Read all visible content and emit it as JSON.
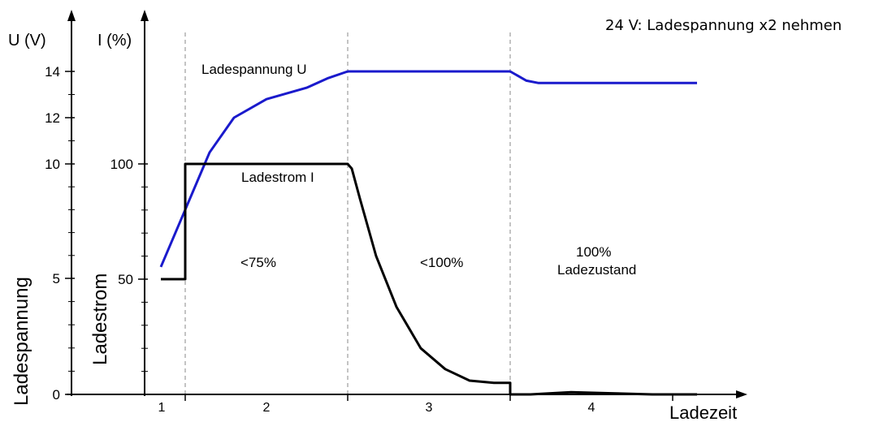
{
  "chart_data": {
    "type": "line",
    "note": "24 V: Ladespannung x2 nehmen",
    "y_left": {
      "unit_label": "U (V)",
      "title": "Ladespannung",
      "ticks": [
        {
          "value": 0,
          "label": "0"
        },
        {
          "value": 5,
          "label": "5"
        },
        {
          "value": 10,
          "label": "10"
        },
        {
          "value": 12,
          "label": "12"
        },
        {
          "value": 14,
          "label": "14"
        }
      ],
      "ylim": [
        0,
        14
      ]
    },
    "y_right": {
      "unit_label": "I (%)",
      "title": "Ladestrom",
      "ticks": [
        {
          "value": 50,
          "label": "50"
        },
        {
          "value": 100,
          "label": "100"
        }
      ],
      "ylim": [
        0,
        100
      ]
    },
    "x_axis": {
      "title": "Ladezeit",
      "phase_boundaries": [
        1,
        5,
        9,
        13
      ],
      "xlim": [
        0,
        14
      ],
      "phase_labels": [
        "1",
        "2",
        "3",
        "4"
      ]
    },
    "phase_annotations": [
      {
        "phase": 2,
        "text": "<75%"
      },
      {
        "phase": 3,
        "text": "<100%"
      },
      {
        "phase": 4,
        "lines": [
          "100%",
          "Ladezustand"
        ]
      }
    ],
    "series": [
      {
        "name": "Ladespannung U",
        "color": "#1a1acc",
        "axis": "left",
        "points": [
          [
            0.4,
            5.5
          ],
          [
            1.0,
            8.0
          ],
          [
            1.6,
            10.5
          ],
          [
            2.2,
            12.0
          ],
          [
            3.0,
            12.8
          ],
          [
            4.0,
            13.3
          ],
          [
            4.5,
            13.7
          ],
          [
            5.0,
            14.0
          ],
          [
            9.0,
            14.0
          ],
          [
            9.2,
            13.8
          ],
          [
            9.4,
            13.6
          ],
          [
            9.7,
            13.5
          ],
          [
            13.6,
            13.5
          ]
        ]
      },
      {
        "name": "Ladestrom I",
        "color": "#000000",
        "axis": "right",
        "points": [
          [
            0.4,
            50
          ],
          [
            1.0,
            50
          ],
          [
            1.0,
            100
          ],
          [
            5.0,
            100
          ],
          [
            5.1,
            98
          ],
          [
            5.3,
            85
          ],
          [
            5.7,
            60
          ],
          [
            6.2,
            38
          ],
          [
            6.8,
            20
          ],
          [
            7.4,
            11
          ],
          [
            8.0,
            6
          ],
          [
            8.6,
            5
          ],
          [
            9.0,
            5
          ],
          [
            9.0,
            0
          ],
          [
            9.5,
            0
          ],
          [
            10.5,
            1
          ],
          [
            11.5,
            0.5
          ],
          [
            12.5,
            0
          ],
          [
            13.6,
            0
          ]
        ]
      }
    ]
  }
}
